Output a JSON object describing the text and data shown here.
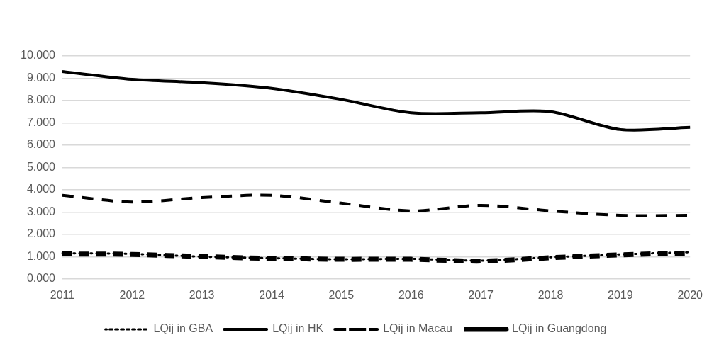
{
  "chart_data": {
    "type": "line",
    "categories": [
      "2011",
      "2012",
      "2013",
      "2014",
      "2015",
      "2016",
      "2017",
      "2018",
      "2019",
      "2020"
    ],
    "series": [
      {
        "name": "LQij in GBA",
        "color": "#000000",
        "line_style": "dotted",
        "values": [
          1.15,
          1.12,
          1.0,
          0.93,
          0.88,
          0.9,
          0.82,
          0.97,
          1.1,
          1.2
        ]
      },
      {
        "name": "LQij in HK",
        "color": "#000000",
        "line_style": "solid",
        "values": [
          9.3,
          8.95,
          8.8,
          8.55,
          8.05,
          7.45,
          7.45,
          7.5,
          6.7,
          6.8
        ]
      },
      {
        "name": "LQij in Macau",
        "color": "#000000",
        "line_style": "dashed",
        "values": [
          3.75,
          3.45,
          3.65,
          3.75,
          3.4,
          3.05,
          3.3,
          3.05,
          2.85,
          2.85
        ]
      },
      {
        "name": "LQij in Guangdong",
        "color": "#000000",
        "line_style": "dashed",
        "values": [
          1.12,
          1.1,
          1.0,
          0.92,
          0.88,
          0.88,
          0.8,
          0.95,
          1.08,
          1.16
        ]
      }
    ],
    "ylim": [
      0,
      10
    ],
    "yticks": [
      {
        "value": 0,
        "label": "0.000"
      },
      {
        "value": 1,
        "label": "1.000"
      },
      {
        "value": 2,
        "label": "2.000"
      },
      {
        "value": 3,
        "label": "3.000"
      },
      {
        "value": 4,
        "label": "4.000"
      },
      {
        "value": 5,
        "label": "5.000"
      },
      {
        "value": 6,
        "label": "6.000"
      },
      {
        "value": 7,
        "label": "7.000"
      },
      {
        "value": 8,
        "label": "8.000"
      },
      {
        "value": 9,
        "label": "9.000"
      },
      {
        "value": 10,
        "label": "10.000"
      }
    ],
    "grid": "y",
    "legend": "bottom",
    "marker": "none"
  }
}
